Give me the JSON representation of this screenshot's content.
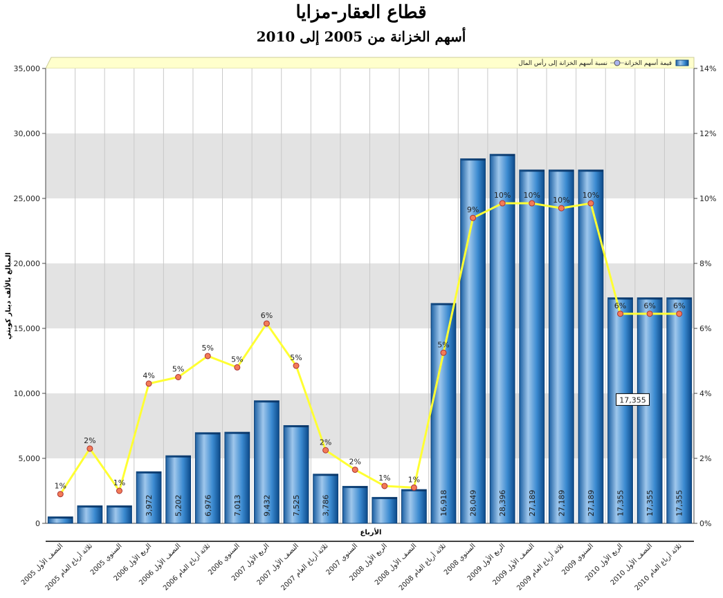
{
  "chart_data": {
    "type": "bar",
    "title": "قطاع العقار-مزايا",
    "subtitle": "أسهم الخزانة من 2005 إلى 2010",
    "xlabel": "الأرباع",
    "ylabel": "المبالغ بالألف دينار كويتي",
    "ylim": [
      0,
      35000
    ],
    "y_ticks": [
      "0",
      "5,000",
      "10,000",
      "15,000",
      "20,000",
      "25,000",
      "30,000",
      "35,000"
    ],
    "y2lim": [
      0,
      14
    ],
    "y2_ticks": [
      "0%",
      "2%",
      "4%",
      "6%",
      "8%",
      "10%",
      "12%",
      "14%"
    ],
    "categories": [
      "النصف الأول 2005",
      "ثلاثة أرباع العام 2005",
      "السنوي 2005",
      "الربع الأول 2006",
      "النصف الأول 2006",
      "ثلاثة أرباع العام 2006",
      "السنوي 2006",
      "الربع الأول 2007",
      "النصف الأول 2007",
      "ثلاثة أرباع العام 2007",
      "السنوي 2007",
      "الربع الأول 2008",
      "النصف الأول 2008",
      "ثلاثة أرباع العام 2008",
      "السنوي 2008",
      "الربع الأول 2009",
      "النصف الأول 2009",
      "ثلاثة أرباع العام 2009",
      "السنوي 2009",
      "الربع الأول 2010",
      "النصف الأول 2010",
      "ثلاثة أرباع العام 2010"
    ],
    "series": [
      {
        "name": "قيمة أسهم الخزانة",
        "kind": "bar",
        "axis": "left",
        "color": "#2f80c4",
        "values": [
          500,
          1350,
          1350,
          3972,
          5202,
          6976,
          7013,
          9432,
          7525,
          3786,
          2850,
          2000,
          2600,
          16918,
          28049,
          28396,
          27189,
          27189,
          27189,
          17355,
          17355,
          17355
        ],
        "labels": [
          "",
          "",
          "",
          "3,972",
          "5,202",
          "6,976",
          "7,013",
          "9,432",
          "7,525",
          "3,786",
          "",
          "",
          "",
          "16,918",
          "28,049",
          "28,396",
          "27,189",
          "27,189",
          "27,189",
          "17,355",
          "17,355",
          "17,355"
        ]
      },
      {
        "name": "نسبة أسهم الخزانة إلى رأس المال",
        "kind": "line",
        "axis": "right",
        "color": "#ffff33",
        "values": [
          0.9,
          2.3,
          1.0,
          4.3,
          4.5,
          5.15,
          4.8,
          6.15,
          4.85,
          2.25,
          1.65,
          1.15,
          1.1,
          5.25,
          9.4,
          9.85,
          9.85,
          9.7,
          9.85,
          6.45,
          6.45,
          6.45
        ],
        "labels": [
          "1%",
          "2%",
          "1%",
          "4%",
          "5%",
          "5%",
          "5%",
          "6%",
          "5%",
          "2%",
          "2%",
          "1%",
          "1%",
          "5%",
          "9%",
          "10%",
          "10%",
          "10%",
          "10%",
          "6%",
          "6%",
          "6%"
        ]
      }
    ],
    "tooltip": "17,355",
    "grid": true,
    "legend_position": "top-right"
  }
}
